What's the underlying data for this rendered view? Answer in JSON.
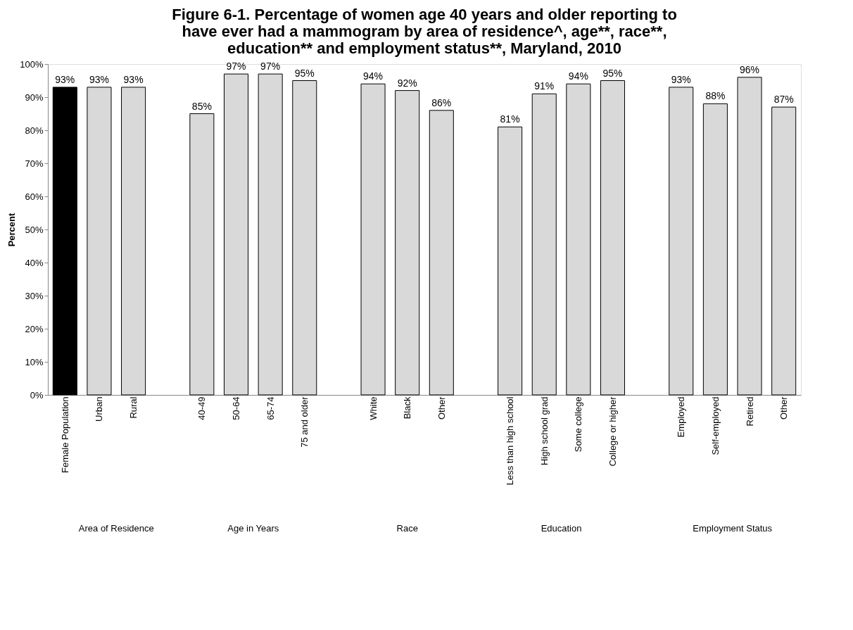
{
  "chart_data": {
    "type": "bar",
    "title": "Figure 6-1.  Percentage of women age 40 years and older reporting to\nhave ever had a mammogram by area of residence^, age**, race**,\neducation** and employment status**, Maryland, 2010",
    "ylabel": "Percent",
    "categories": [
      "Female Population",
      "Urban",
      "Rural",
      null,
      "40-49",
      "50-64",
      "65-74",
      "75 and older",
      null,
      "White",
      "Black",
      "Other",
      null,
      "Less than high school",
      "High school grad",
      "Some college",
      "College or higher",
      null,
      "Employed",
      "Self-employed",
      "Retired",
      "Other"
    ],
    "values": [
      93,
      93,
      93,
      null,
      85,
      97,
      97,
      95,
      null,
      94,
      92,
      86,
      null,
      81,
      91,
      94,
      95,
      null,
      93,
      88,
      96,
      87
    ],
    "value_labels": [
      "93%",
      "93%",
      "93%",
      null,
      "85%",
      "97%",
      "97%",
      "95%",
      null,
      "94%",
      "92%",
      "86%",
      null,
      "81%",
      "91%",
      "94%",
      "95%",
      null,
      "93%",
      "88%",
      "96%",
      "87%"
    ],
    "colors": [
      "#000000",
      "#d9d9d9",
      "#d9d9d9",
      null,
      "#d9d9d9",
      "#d9d9d9",
      "#d9d9d9",
      "#d9d9d9",
      null,
      "#d9d9d9",
      "#d9d9d9",
      "#d9d9d9",
      null,
      "#d9d9d9",
      "#d9d9d9",
      "#d9d9d9",
      "#d9d9d9",
      null,
      "#d9d9d9",
      "#d9d9d9",
      "#d9d9d9",
      "#d9d9d9"
    ],
    "annotations": [
      "Area of Residence",
      "Age in Years",
      "Race",
      "Education",
      "Employment Status"
    ],
    "ylim": [
      0,
      100
    ],
    "yticks": [
      {
        "value": 0,
        "label": "0%"
      },
      {
        "value": 10,
        "label": "10%"
      },
      {
        "value": 20,
        "label": "20%"
      },
      {
        "value": 30,
        "label": "30%"
      },
      {
        "value": 40,
        "label": "40%"
      },
      {
        "value": 50,
        "label": "50%"
      },
      {
        "value": 60,
        "label": "60%"
      },
      {
        "value": 70,
        "label": "70%"
      },
      {
        "value": 80,
        "label": "80%"
      },
      {
        "value": 90,
        "label": "90%"
      },
      {
        "value": 100,
        "label": "100%"
      }
    ],
    "grid": false
  }
}
